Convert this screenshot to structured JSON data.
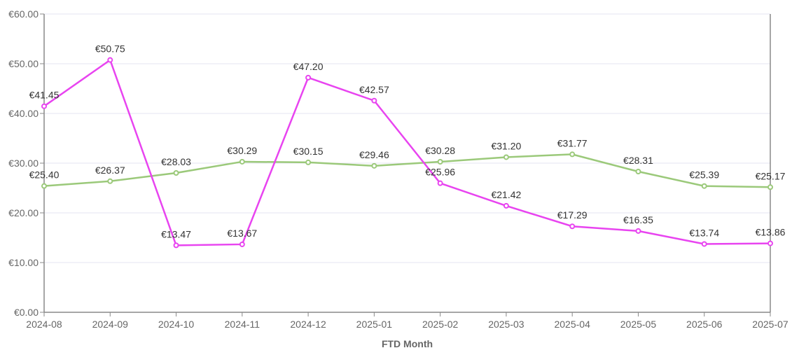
{
  "chart_data": {
    "type": "line",
    "title": "",
    "xlabel": "FTD Month",
    "ylabel": "",
    "ylim": [
      0,
      60
    ],
    "yticks": [
      "€0.00",
      "€10.00",
      "€20.00",
      "€30.00",
      "€40.00",
      "€50.00",
      "€60.00"
    ],
    "categories": [
      "2024-08",
      "2024-09",
      "2024-10",
      "2024-11",
      "2024-12",
      "2025-01",
      "2025-02",
      "2025-03",
      "2025-04",
      "2025-05",
      "2025-06",
      "2025-07"
    ],
    "grid": true,
    "series": [
      {
        "name": "series-magenta",
        "color": "#e844f0",
        "values": [
          41.45,
          50.75,
          13.47,
          13.67,
          47.2,
          42.57,
          25.96,
          21.42,
          17.29,
          16.35,
          13.74,
          13.86
        ],
        "labels": [
          "€41.45",
          "€50.75",
          "€13.47",
          "€13.67",
          "€47.20",
          "€42.57",
          "€25.96",
          "€21.42",
          "€17.29",
          "€16.35",
          "€13.74",
          "€13.86"
        ]
      },
      {
        "name": "series-green",
        "color": "#9bc97a",
        "values": [
          25.4,
          26.37,
          28.03,
          30.29,
          30.15,
          29.46,
          30.28,
          31.2,
          31.77,
          28.31,
          25.39,
          25.17
        ],
        "labels": [
          "€25.40",
          "€26.37",
          "€28.03",
          "€30.29",
          "€30.15",
          "€29.46",
          "€30.28",
          "€31.20",
          "€31.77",
          "€28.31",
          "€25.39",
          "€25.17"
        ]
      }
    ]
  }
}
